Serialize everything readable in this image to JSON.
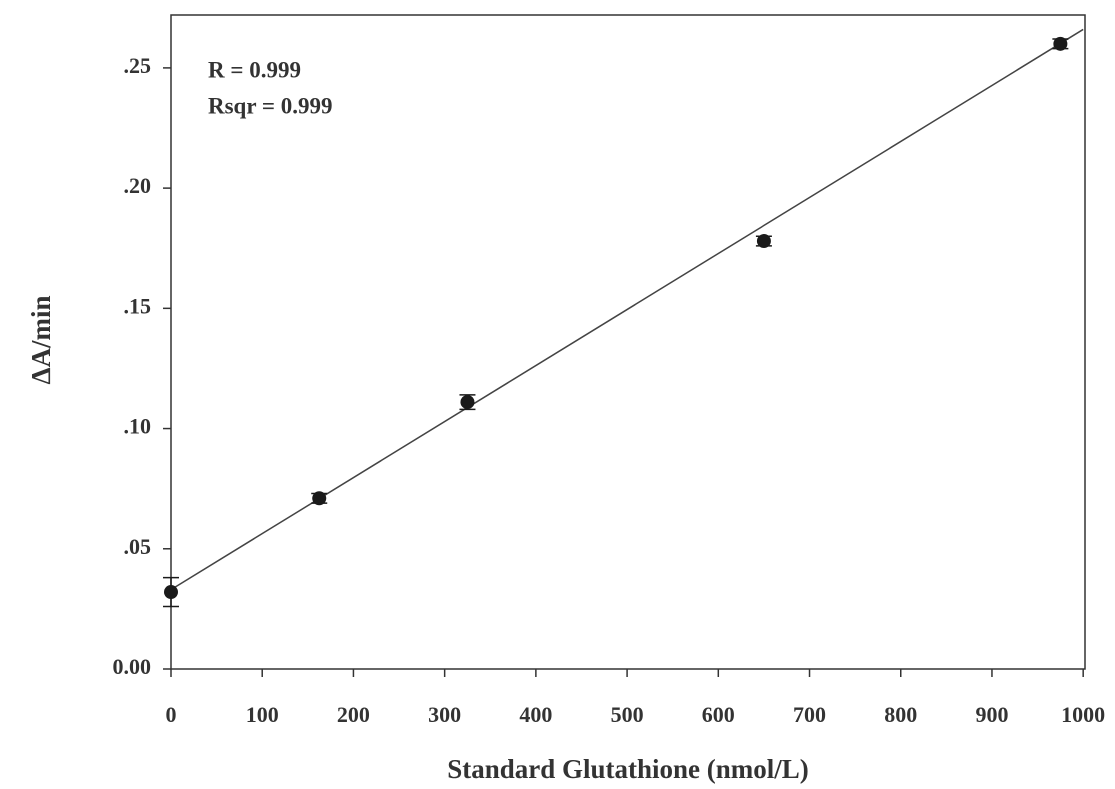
{
  "chart_data": {
    "type": "scatter",
    "x_label": "Standard Glutathione (nmol/L)",
    "y_label": "ΔA/min",
    "annotations": [
      "R = 0.999",
      "Rsqr = 0.999"
    ],
    "xlim": [
      0,
      1002
    ],
    "ylim": [
      0,
      0.272
    ],
    "xticks": [
      0,
      100,
      200,
      300,
      400,
      500,
      600,
      700,
      800,
      900,
      1000
    ],
    "yticks": [
      {
        "value": 0,
        "label": "0.00"
      },
      {
        "value": 0.05,
        "label": ".05"
      },
      {
        "value": 0.1,
        "label": ".10"
      },
      {
        "value": 0.15,
        "label": ".15"
      },
      {
        "value": 0.2,
        "label": ".20"
      },
      {
        "value": 0.25,
        "label": ".25"
      }
    ],
    "series": [
      {
        "color": "#1a1a1a",
        "x": [
          0,
          162.5,
          325,
          650,
          975
        ],
        "values": [
          0.032,
          0.071,
          0.111,
          0.178,
          0.26
        ],
        "errors": [
          0.006,
          0.002,
          0.003,
          0.002,
          0.002
        ]
      }
    ],
    "fit": {
      "color": "#444444",
      "x": [
        0,
        1000
      ],
      "values": [
        0.033,
        0.266
      ]
    }
  }
}
